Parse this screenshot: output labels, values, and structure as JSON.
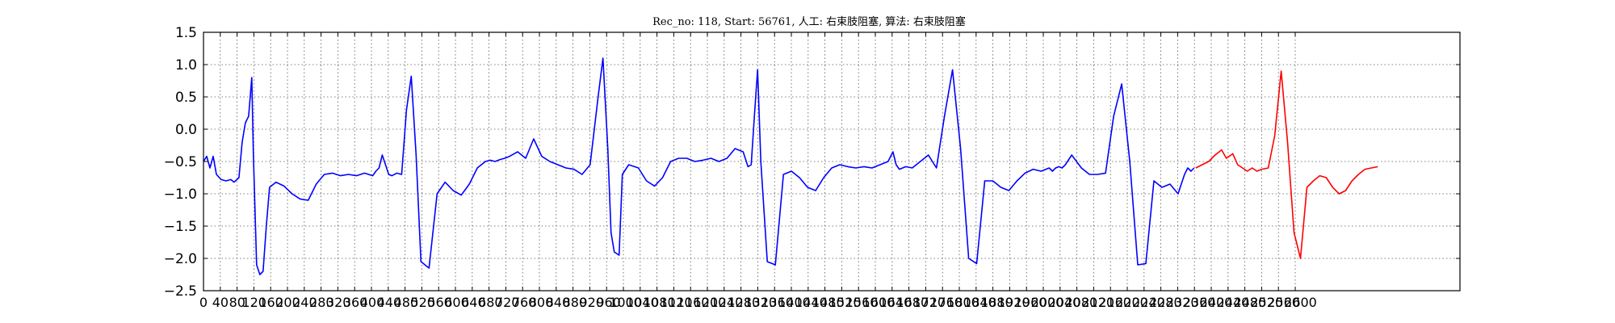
{
  "chart_data": {
    "type": "line",
    "title": "Rec_no: 118, Start: 56761, 人工: 右束肢阻塞, 算法: 右束肢阻塞",
    "xlabel": "",
    "ylabel": "",
    "xlim": [
      0,
      1560
    ],
    "ylim": [
      -2.5,
      1.5
    ],
    "grid": true,
    "yticks": [
      -2.5,
      -2.0,
      -1.5,
      -1.0,
      -0.5,
      0.0,
      0.5,
      1.0,
      1.5
    ],
    "ytick_labels": [
      "−2.5",
      "−2.0",
      "−1.5",
      "−1.0",
      "−0.5",
      "0.0",
      "0.5",
      "1.0",
      "1.5"
    ],
    "xtick_labels": [
      "0",
      "40",
      "80",
      "120",
      "160",
      "200",
      "240",
      "280",
      "320",
      "360",
      "400",
      "440",
      "480",
      "520",
      "560",
      "600",
      "640",
      "680",
      "720",
      "760",
      "800",
      "840",
      "880",
      "920",
      "960",
      "1000",
      "1040",
      "1080",
      "1120",
      "1160",
      "1200",
      "1240",
      "1280",
      "1320",
      "1360",
      "1400",
      "1440",
      "1480",
      "1520",
      "1560",
      "1600",
      "1640",
      "1680",
      "1720",
      "1760",
      "1800",
      "1840",
      "1880",
      "1920",
      "1960",
      "2000",
      "2040",
      "2080",
      "2120",
      "2160",
      "2200",
      "2240",
      "2280",
      "2320",
      "2360",
      "2400",
      "2440",
      "2480",
      "2520",
      "2560",
      "2600"
    ],
    "series": [
      {
        "color": "#0000ff",
        "x": [
          0,
          4,
          8,
          12,
          16,
          22,
          28,
          34,
          38,
          44,
          48,
          52,
          56,
          60,
          62,
          66,
          70,
          74,
          78,
          82,
          90,
          100,
          110,
          120,
          130,
          140,
          150,
          160,
          170,
          180,
          190,
          200,
          210,
          214,
          218,
          222,
          226,
          230,
          234,
          240,
          246,
          252,
          258,
          264,
          270,
          280,
          290,
          300,
          310,
          320,
          330,
          340,
          350,
          356,
          362,
          368,
          374,
          380,
          390,
          400,
          410,
          420,
          430,
          440,
          450,
          460,
          470,
          480,
          490,
          496,
          502,
          506,
          510,
          516,
          520,
          528,
          540,
          550,
          560,
          570,
          580,
          590,
          600,
          610,
          620,
          630,
          640,
          650,
          660,
          670,
          676,
          680,
          684,
          688,
          692,
          700,
          710,
          720,
          730,
          740,
          750,
          760,
          770,
          780,
          790,
          800,
          810,
          820,
          830,
          840,
          850,
          856,
          860,
          864,
          868,
          872,
          880,
          890,
          900,
          910,
          920,
          930,
          940,
          950,
          960,
          970,
          980,
          990,
          1000,
          1010,
          1020,
          1030,
          1040,
          1050,
          1054,
          1058,
          1062,
          1066,
          1070,
          1078,
          1090,
          1100,
          1110,
          1120,
          1130,
          1140,
          1150,
          1160,
          1170,
          1180,
          1190,
          1200,
          1210,
          1214,
          1218,
          1222,
          1226,
          1230,
          1240,
          1250,
          1260,
          1270,
          1280,
          1290,
          1300,
          1310,
          1320,
          1330,
          1340,
          1350,
          1360,
          1366,
          1370,
          1374,
          1378,
          1382,
          1390,
          1400,
          1410,
          1420,
          1430,
          1440,
          1450,
          1460
        ],
        "y": [
          -0.5,
          -0.42,
          -0.6,
          -0.42,
          -0.7,
          -0.78,
          -0.8,
          -0.78,
          -0.82,
          -0.75,
          -0.2,
          0.1,
          0.2,
          0.8,
          -0.4,
          -2.1,
          -2.25,
          -2.2,
          -1.5,
          -0.9,
          -0.82,
          -0.88,
          -1.0,
          -1.08,
          -1.1,
          -0.85,
          -0.7,
          -0.68,
          -0.72,
          -0.7,
          -0.72,
          -0.68,
          -0.72,
          -0.65,
          -0.6,
          -0.4,
          -0.55,
          -0.7,
          -0.72,
          -0.68,
          -0.7,
          0.3,
          0.82,
          -0.4,
          -2.05,
          -2.15,
          -1.0,
          -0.82,
          -0.95,
          -1.02,
          -0.85,
          -0.6,
          -0.5,
          -0.48,
          -0.5,
          -0.47,
          -0.45,
          -0.42,
          -0.35,
          -0.45,
          -0.15,
          -0.42,
          -0.5,
          -0.55,
          -0.6,
          -0.62,
          -0.7,
          -0.55,
          0.5,
          1.1,
          -0.3,
          -1.6,
          -1.9,
          -1.95,
          -0.7,
          -0.55,
          -0.6,
          -0.8,
          -0.88,
          -0.75,
          -0.5,
          -0.45,
          -0.45,
          -0.5,
          -0.48,
          -0.45,
          -0.5,
          -0.45,
          -0.3,
          -0.35,
          -0.58,
          -0.55,
          0.2,
          0.92,
          -0.5,
          -2.05,
          -2.1,
          -0.7,
          -0.65,
          -0.75,
          -0.9,
          -0.95,
          -0.75,
          -0.6,
          -0.55,
          -0.58,
          -0.6,
          -0.58,
          -0.6,
          -0.55,
          -0.5,
          -0.35,
          -0.55,
          -0.62,
          -0.6,
          -0.58,
          -0.6,
          -0.5,
          -0.4,
          -0.6,
          0.2,
          0.92,
          -0.3,
          -2.0,
          -2.08,
          -0.8,
          -0.8,
          -0.9,
          -0.95,
          -0.8,
          -0.68,
          -0.62,
          -0.65,
          -0.6,
          -0.65,
          -0.6,
          -0.58,
          -0.6,
          -0.55,
          -0.4,
          -0.6,
          -0.7,
          -0.7,
          -0.68,
          0.2,
          0.7,
          -0.5,
          -2.1,
          -2.08,
          -0.8,
          -0.9,
          -0.85,
          -1.0,
          -0.85,
          -0.7,
          -0.6,
          -0.65,
          -0.6,
          -0.62,
          -0.58,
          -0.5,
          -0.4,
          -0.58,
          -0.65,
          -0.7,
          -0.6,
          0.2,
          0.78,
          -0.5,
          -1.8,
          -2.0,
          -0.85,
          -0.9,
          -1.0,
          -1.1,
          -0.85,
          -0.7,
          -0.6,
          -0.62,
          -0.6,
          -0.65,
          -0.6,
          -0.58,
          -0.6
        ]
      },
      {
        "color": "#ff0000",
        "x": [
          1460,
          1470,
          1474,
          1478,
          1482,
          1486,
          1490,
          1500,
          1510,
          1520,
          1530,
          1540,
          1550,
          1560
        ],
        "y": [
          -0.6,
          -0.5,
          -0.4,
          -0.55,
          -0.48,
          -0.42,
          -0.5,
          -0.55,
          -0.62,
          -0.68,
          -0.7,
          -0.72,
          -0.75,
          -0.8
        ]
      }
    ],
    "red_segment": {
      "x": [
        1232,
        1240,
        1248,
        1256,
        1264,
        1270,
        1278,
        1284,
        1290,
        1296,
        1302,
        1308,
        1314,
        1322,
        1330,
        1338,
        1346,
        1354,
        1362,
        1370,
        1378,
        1386,
        1394,
        1402,
        1410,
        1418,
        1426,
        1434,
        1442,
        1450,
        1458
      ],
      "y": [
        -0.6,
        -0.55,
        -0.5,
        -0.4,
        -0.32,
        -0.45,
        -0.38,
        -0.55,
        -0.6,
        -0.65,
        -0.6,
        -0.65,
        -0.62,
        -0.6,
        -0.1,
        0.9,
        -0.2,
        -1.6,
        -2.0,
        -0.9,
        -0.8,
        -0.72,
        -0.75,
        -0.9,
        -1.0,
        -0.95,
        -0.8,
        -0.7,
        -0.62,
        -0.6,
        -0.58
      ]
    }
  }
}
